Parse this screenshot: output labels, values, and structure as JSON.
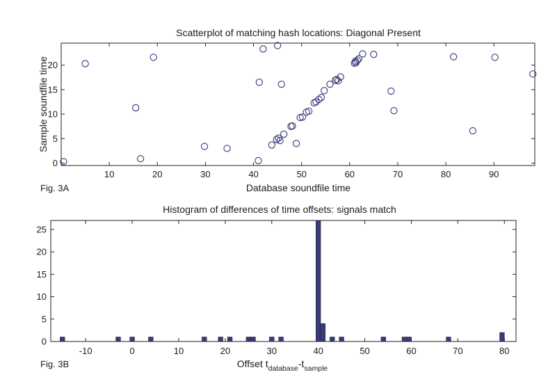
{
  "chart_data": [
    {
      "type": "scatter",
      "figure_label": "Fig. 3A",
      "title": "Scatterplot of matching hash locations:  Diagonal Present",
      "xlabel": "Database soundfile time",
      "ylabel": "Sample soundfile time",
      "xlim": [
        0,
        98.5
      ],
      "ylim": [
        -0.5,
        24.5
      ],
      "xticks": [
        10,
        20,
        30,
        40,
        50,
        60,
        70,
        80,
        90
      ],
      "yticks": [
        0,
        5,
        10,
        15,
        20
      ],
      "marker": "open-circle",
      "color": "#35357a",
      "grid": false,
      "points": [
        [
          0.5,
          0.3
        ],
        [
          5.0,
          20.3
        ],
        [
          15.5,
          11.3
        ],
        [
          16.5,
          0.9
        ],
        [
          19.2,
          21.6
        ],
        [
          29.8,
          3.4
        ],
        [
          34.5,
          3.0
        ],
        [
          41.0,
          0.5
        ],
        [
          41.2,
          16.5
        ],
        [
          42.0,
          23.3
        ],
        [
          43.8,
          3.7
        ],
        [
          44.8,
          4.8
        ],
        [
          45.0,
          24.0
        ],
        [
          45.2,
          5.1
        ],
        [
          45.5,
          4.6
        ],
        [
          45.8,
          16.1
        ],
        [
          46.3,
          5.9
        ],
        [
          47.8,
          7.5
        ],
        [
          48.1,
          7.6
        ],
        [
          48.9,
          4.0
        ],
        [
          49.7,
          9.3
        ],
        [
          50.2,
          9.4
        ],
        [
          51.0,
          10.4
        ],
        [
          51.5,
          10.6
        ],
        [
          52.6,
          12.3
        ],
        [
          53.0,
          12.5
        ],
        [
          53.6,
          13.0
        ],
        [
          54.1,
          13.4
        ],
        [
          54.7,
          14.8
        ],
        [
          55.9,
          16.1
        ],
        [
          57.0,
          16.9
        ],
        [
          57.3,
          17.1
        ],
        [
          57.6,
          16.8
        ],
        [
          58.1,
          17.6
        ],
        [
          61.0,
          20.4
        ],
        [
          61.2,
          20.8
        ],
        [
          61.3,
          20.5
        ],
        [
          61.6,
          21.0
        ],
        [
          61.9,
          21.3
        ],
        [
          62.7,
          22.3
        ],
        [
          65.0,
          22.2
        ],
        [
          68.6,
          14.7
        ],
        [
          69.2,
          10.7
        ],
        [
          81.6,
          21.7
        ],
        [
          85.6,
          6.6
        ],
        [
          90.2,
          21.6
        ],
        [
          98.1,
          18.2
        ]
      ]
    },
    {
      "type": "bar",
      "figure_label": "Fig. 3B",
      "title": "Histogram of differences of time offsets: signals match",
      "xlabel_main": "Offset t",
      "xlabel_sub1": "database",
      "xlabel_mid": "-t",
      "xlabel_sub2": "sample",
      "ylabel": "",
      "xlim": [
        -17.5,
        82.5
      ],
      "ylim": [
        0,
        27
      ],
      "xticks": [
        -10,
        0,
        10,
        20,
        30,
        40,
        50,
        60,
        70,
        80
      ],
      "yticks": [
        0,
        5,
        10,
        15,
        20,
        25
      ],
      "bar_width": 1.0,
      "color": "#3a3a78",
      "grid": false,
      "bins": [
        [
          -15,
          1
        ],
        [
          -3,
          1
        ],
        [
          0,
          1
        ],
        [
          4,
          1
        ],
        [
          15.5,
          1
        ],
        [
          19,
          1
        ],
        [
          21,
          1
        ],
        [
          25,
          1
        ],
        [
          26,
          1
        ],
        [
          30,
          1
        ],
        [
          32,
          1
        ],
        [
          40,
          27
        ],
        [
          41,
          4
        ],
        [
          43,
          1
        ],
        [
          45,
          1
        ],
        [
          54,
          1
        ],
        [
          58.5,
          1
        ],
        [
          59.5,
          1
        ],
        [
          68,
          1
        ],
        [
          79.5,
          2
        ]
      ]
    }
  ]
}
